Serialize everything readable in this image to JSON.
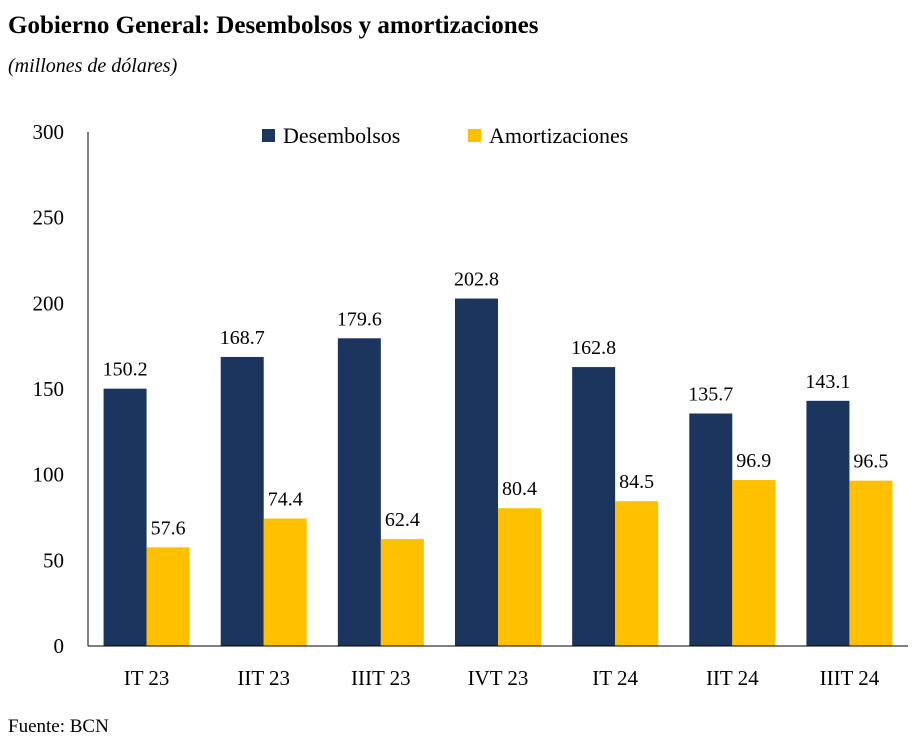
{
  "title": "Gobierno General: Desembolsos y amortizaciones",
  "subtitle": "(millones de dólares)",
  "source": "Fuente: BCN",
  "colors": {
    "desembolsos": "#1b355e",
    "amortizaciones": "#ffc000"
  },
  "chart_data": {
    "type": "bar",
    "categories": [
      "IT 23",
      "IIT 23",
      "IIIT 23",
      "IVT 23",
      "IT 24",
      "IIT 24",
      "IIIT 24"
    ],
    "series": [
      {
        "name": "Desembolsos",
        "values": [
          150.2,
          168.7,
          179.6,
          202.8,
          162.8,
          135.7,
          143.1
        ],
        "labels": [
          "150.2",
          "168.7",
          "179.6",
          "202.8",
          "162.8",
          "135.7",
          "143.1"
        ]
      },
      {
        "name": "Amortizaciones",
        "values": [
          57.6,
          74.4,
          62.4,
          80.4,
          84.5,
          96.9,
          96.5
        ],
        "labels": [
          "57.6",
          "74.4",
          "62.4",
          "80.4",
          "84.5",
          "96.9",
          "96.5"
        ]
      }
    ],
    "ylim": [
      0,
      300
    ],
    "yticks": [
      "0",
      "50",
      "100",
      "150",
      "200",
      "250",
      "300"
    ],
    "ytick_values": [
      0,
      50,
      100,
      150,
      200,
      250,
      300
    ],
    "grid": false,
    "legend_position": "top-center"
  }
}
